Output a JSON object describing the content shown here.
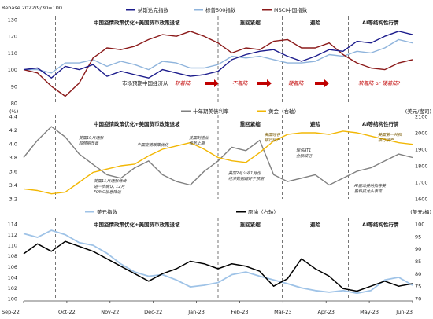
{
  "chart_data": [
    {
      "type": "line",
      "title_left": "Rebase 2022/9/30=100",
      "ylim": [
        80,
        130
      ],
      "y_ticks": [
        80,
        90,
        100,
        110,
        120,
        130
      ],
      "series": [
        {
          "name": "纳斯达克指数",
          "color": "#1c1c8c",
          "values": [
            100,
            101,
            95,
            102,
            100,
            103,
            96,
            99,
            97,
            95,
            100,
            98,
            96,
            97,
            99,
            106,
            109,
            111,
            112,
            108,
            105,
            108,
            112,
            111,
            117,
            116,
            120,
            123,
            121
          ]
        },
        {
          "name": "标普500指数",
          "color": "#8fb4dc",
          "values": [
            100,
            100,
            98,
            104,
            104,
            106,
            102,
            105,
            103,
            100,
            105,
            104,
            101,
            101,
            103,
            108,
            107,
            108,
            106,
            104,
            104,
            105,
            109,
            108,
            111,
            110,
            113,
            118,
            116
          ]
        },
        {
          "name": "MSCI中国指数",
          "color": "#8b1a1a",
          "values": [
            100,
            98,
            90,
            84,
            92,
            107,
            113,
            112,
            114,
            118,
            121,
            120,
            123,
            120,
            116,
            110,
            113,
            112,
            117,
            118,
            113,
            113,
            116,
            109,
            104,
            101,
            100,
            104,
            106
          ]
        }
      ],
      "annotations": {
        "policy": "中国疫情政策优化+美国货币政策退坡",
        "regime_1": "重回紧缩",
        "regime_2": "避险",
        "regime_3": "AI等结构性行情",
        "expect_prefix": "市场预期中国经济从",
        "expect_1": "软着陆",
        "expect_2": "不着陆",
        "expect_3": "硬着陆",
        "expect_4": "软着陆 or 硬着陆?"
      }
    },
    {
      "type": "line",
      "left_unit": "(%)",
      "right_unit": "(美元/盎司)",
      "ylim_left": [
        3.2,
        4.4
      ],
      "y_ticks_left": [
        3.2,
        3.4,
        3.6,
        3.8,
        4.0,
        4.2,
        4.4
      ],
      "ylim_right": [
        1600,
        2100
      ],
      "y_ticks_right": [
        1600,
        1700,
        1800,
        1900,
        2000,
        2100
      ],
      "series": [
        {
          "name": "十年期美债利率",
          "color": "#808080",
          "axis": "left",
          "values": [
            3.8,
            4.05,
            4.25,
            4.1,
            3.85,
            3.7,
            3.55,
            3.5,
            3.65,
            3.75,
            3.55,
            3.45,
            3.4,
            3.6,
            3.75,
            3.95,
            3.9,
            4.05,
            3.55,
            3.45,
            3.5,
            3.55,
            3.4,
            3.5,
            3.6,
            3.65,
            3.75,
            3.85,
            3.8
          ]
        },
        {
          "name": "黄金（右轴）",
          "color": "#f2b705",
          "axis": "right",
          "values": [
            1660,
            1650,
            1630,
            1640,
            1700,
            1760,
            1780,
            1800,
            1810,
            1860,
            1900,
            1920,
            1940,
            1900,
            1850,
            1830,
            1820,
            1880,
            1950,
            1990,
            2000,
            2000,
            1990,
            2010,
            2000,
            1980,
            1960,
            1940,
            1930
          ]
        }
      ],
      "annotations": {
        "policy": "中国疫情政策优化+美国货币政策退坡",
        "regime_1": "重回紧缩",
        "regime_2": "避险",
        "regime_3": "AI等结构性行情",
        "notes": [
          {
            "line1": "美国10月通胀",
            "line2": "超预期改善"
          },
          {
            "line1": "中国疫情政策优化",
            "line2": ""
          },
          {
            "line1": "美国制造业",
            "line2": "债务上限"
          },
          {
            "line1": "美国硅谷",
            "line2": "银行破产"
          },
          {
            "line1": "瑞信AT1",
            "line2": "全额减记"
          },
          {
            "line1": "美国第一共和",
            "line2": "银行破产"
          },
          {
            "line1": "美国11月通胀继续",
            "line2": "进一步确认, 12月",
            "line3": "FOMC加息降速"
          },
          {
            "line1": "美国2月公布1月份",
            "line2": "经济数据超好于预期"
          },
          {
            "line1": "AI驱动美纳指等美",
            "line2": "股科技龙头表现"
          }
        ]
      }
    },
    {
      "type": "line",
      "right_unit": "(美元/桶)",
      "ylim_left": [
        100,
        114
      ],
      "y_ticks_left": [
        100,
        102,
        104,
        106,
        108,
        110,
        112,
        114
      ],
      "ylim_right": [
        70,
        100
      ],
      "y_ticks_right": [
        70,
        75,
        80,
        85,
        90,
        95,
        100
      ],
      "x_ticks": [
        "Sep-22",
        "Oct-22",
        "Nov-22",
        "Dec-22",
        "Jan-23",
        "Feb-23",
        "Mar-23",
        "Apr-23",
        "May-23",
        "Jun-23"
      ],
      "series": [
        {
          "name": "美元指数",
          "color": "#9fc3e7",
          "axis": "left",
          "values": [
            112.2,
            111.5,
            112.8,
            112.0,
            110.5,
            110.0,
            108.5,
            106.5,
            105.0,
            104.2,
            104.5,
            103.5,
            102.2,
            102.5,
            103.0,
            104.5,
            105.0,
            104.2,
            103.5,
            102.8,
            102.0,
            101.5,
            101.2,
            101.5,
            101.0,
            101.5,
            103.5,
            104.0,
            102.5
          ]
        },
        {
          "name": "原油（右轴）",
          "color": "#000000",
          "axis": "right",
          "values": [
            88,
            92,
            89,
            93,
            91,
            89,
            86,
            83,
            80,
            77,
            80,
            82,
            85,
            84,
            82,
            84,
            83,
            81,
            75,
            78,
            86,
            82,
            79,
            74,
            73,
            75,
            77,
            75,
            76
          ]
        }
      ],
      "annotations": {
        "policy": "中国疫情政策优化+美国货币政策退坡",
        "regime_1": "重回紧缩",
        "regime_2": "避险",
        "regime_3": "AI等结构性行情"
      }
    }
  ]
}
